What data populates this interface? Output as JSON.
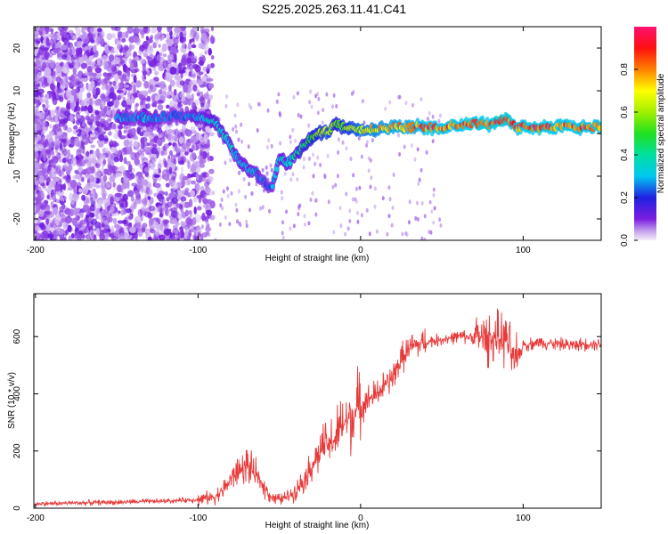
{
  "title": "S225.2025.263.11.41.C41",
  "chart_data": [
    {
      "type": "heatmap",
      "name": "spectrogram",
      "xlabel": "Height of straight line (km)",
      "ylabel": "Frequency (Hz)",
      "xlim": [
        -201,
        148
      ],
      "ylim": [
        -25,
        25
      ],
      "xticks": [
        -200,
        -100,
        0,
        100
      ],
      "yticks": [
        -20,
        -10,
        0,
        10,
        20
      ],
      "xtick_labels": [
        "-200",
        "-100",
        "0",
        "100"
      ],
      "ytick_labels": [
        "-20",
        "-10",
        "0",
        "10",
        "20"
      ],
      "colorbar": {
        "label": "Normalized spectral amplitude",
        "range": [
          0,
          1
        ],
        "ticks": [
          0.0,
          0.2,
          0.4,
          0.6,
          0.8
        ],
        "tick_labels": [
          "0.0",
          "0.2",
          "0.4",
          "0.6",
          "0.8"
        ]
      },
      "ridge": [
        {
          "x": -150,
          "f": 3.5,
          "amp": 0.3
        },
        {
          "x": -140,
          "f": 4,
          "amp": 0.25
        },
        {
          "x": -130,
          "f": 3.5,
          "amp": 0.3
        },
        {
          "x": -120,
          "f": 4,
          "amp": 0.25
        },
        {
          "x": -110,
          "f": 4,
          "amp": 0.25
        },
        {
          "x": -100,
          "f": 4,
          "amp": 0.3
        },
        {
          "x": -90,
          "f": 3,
          "amp": 0.35
        },
        {
          "x": -85,
          "f": 0,
          "amp": 0.35
        },
        {
          "x": -80,
          "f": -3,
          "amp": 0.35
        },
        {
          "x": -75,
          "f": -6,
          "amp": 0.3
        },
        {
          "x": -70,
          "f": -8,
          "amp": 0.3
        },
        {
          "x": -65,
          "f": -9,
          "amp": 0.3
        },
        {
          "x": -60,
          "f": -11,
          "amp": 0.25
        },
        {
          "x": -55,
          "f": -13,
          "amp": 0.25
        },
        {
          "x": -50,
          "f": -6,
          "amp": 0.35
        },
        {
          "x": -45,
          "f": -7,
          "amp": 0.35
        },
        {
          "x": -40,
          "f": -5,
          "amp": 0.4
        },
        {
          "x": -35,
          "f": -3,
          "amp": 0.45
        },
        {
          "x": -30,
          "f": -1,
          "amp": 0.55
        },
        {
          "x": -25,
          "f": 0,
          "amp": 0.6
        },
        {
          "x": -20,
          "f": 0.5,
          "amp": 0.65
        },
        {
          "x": -15,
          "f": 2.5,
          "amp": 0.55
        },
        {
          "x": -10,
          "f": 1.5,
          "amp": 0.6
        },
        {
          "x": -5,
          "f": 1.5,
          "amp": 0.65
        },
        {
          "x": 0,
          "f": 1,
          "amp": 0.7
        },
        {
          "x": 10,
          "f": 1,
          "amp": 0.75
        },
        {
          "x": 20,
          "f": 1.5,
          "amp": 0.8
        },
        {
          "x": 30,
          "f": 1.5,
          "amp": 0.8
        },
        {
          "x": 40,
          "f": 1.5,
          "amp": 0.85
        },
        {
          "x": 50,
          "f": 1.5,
          "amp": 0.85
        },
        {
          "x": 60,
          "f": 2,
          "amp": 0.85
        },
        {
          "x": 70,
          "f": 2.5,
          "amp": 0.9
        },
        {
          "x": 80,
          "f": 2,
          "amp": 0.85
        },
        {
          "x": 85,
          "f": 3,
          "amp": 0.95
        },
        {
          "x": 90,
          "f": 3,
          "amp": 0.9
        },
        {
          "x": 95,
          "f": 1.5,
          "amp": 0.85
        },
        {
          "x": 100,
          "f": 1.5,
          "amp": 0.85
        },
        {
          "x": 110,
          "f": 1.5,
          "amp": 0.9
        },
        {
          "x": 120,
          "f": 1.5,
          "amp": 0.85
        },
        {
          "x": 130,
          "f": 1.5,
          "amp": 0.85
        },
        {
          "x": 140,
          "f": 1.5,
          "amp": 0.85
        },
        {
          "x": 148,
          "f": 1.5,
          "amp": 0.85
        }
      ]
    },
    {
      "type": "line",
      "name": "snr",
      "xlabel": "Height of straight line (km)",
      "ylabel": "SNR (10 * v/v)",
      "xlim": [
        -201,
        148
      ],
      "ylim": [
        0,
        750
      ],
      "xticks": [
        -200,
        -100,
        0,
        100
      ],
      "yticks": [
        0,
        200,
        400,
        600
      ],
      "xtick_labels": [
        "-200",
        "-100",
        "0",
        "100"
      ],
      "ytick_labels": [
        "0",
        "200",
        "400",
        "600"
      ],
      "color": "#e83a3a",
      "series": [
        {
          "name": "SNR",
          "x": [
            -201,
            -180,
            -160,
            -140,
            -120,
            -100,
            -90,
            -85,
            -80,
            -75,
            -70,
            -65,
            -60,
            -55,
            -50,
            -45,
            -40,
            -35,
            -30,
            -25,
            -20,
            -15,
            -10,
            -5,
            0,
            5,
            10,
            15,
            20,
            25,
            30,
            40,
            50,
            60,
            70,
            80,
            90,
            95,
            100,
            110,
            120,
            130,
            140,
            148
          ],
          "y": [
            15,
            18,
            20,
            22,
            25,
            30,
            40,
            60,
            100,
            130,
            150,
            120,
            80,
            40,
            30,
            40,
            60,
            100,
            150,
            200,
            220,
            250,
            300,
            320,
            360,
            380,
            400,
            430,
            460,
            520,
            560,
            580,
            590,
            600,
            600,
            595,
            590,
            500,
            570,
            580,
            575,
            570,
            575,
            575
          ]
        }
      ]
    }
  ]
}
